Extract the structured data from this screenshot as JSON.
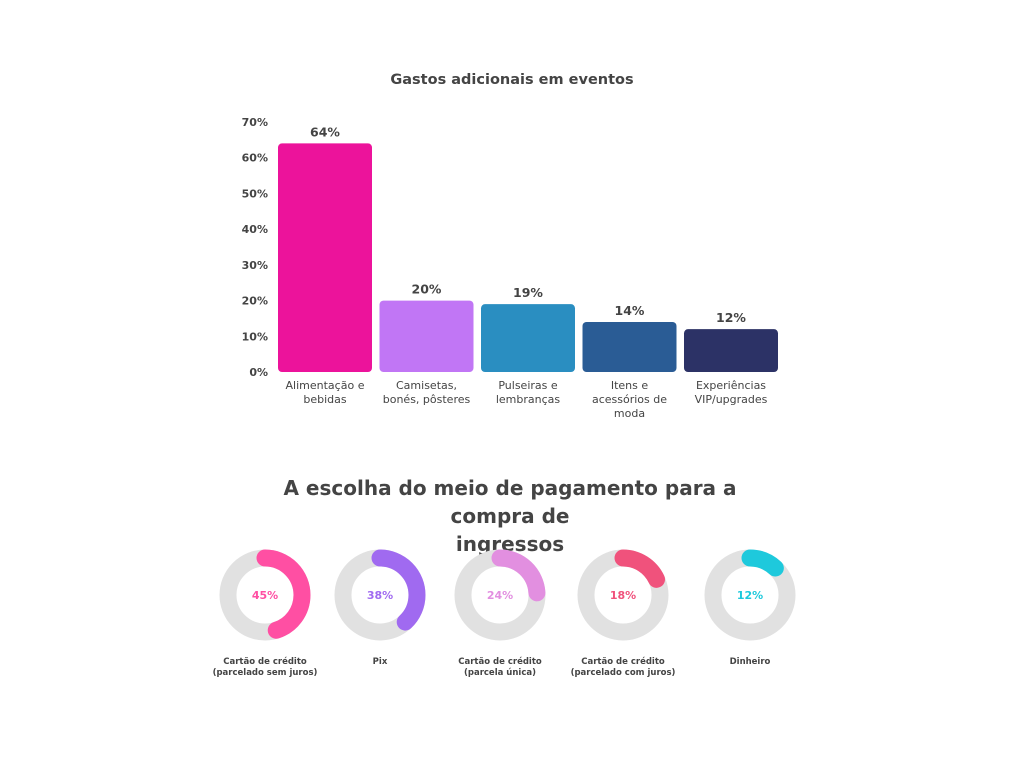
{
  "chart_data": [
    {
      "type": "bar",
      "title": "Gastos adicionais em eventos",
      "xlabel": "",
      "ylabel": "",
      "ylim": [
        0,
        70
      ],
      "yticks": [
        "0%",
        "10%",
        "20%",
        "30%",
        "40%",
        "50%",
        "60%",
        "70%"
      ],
      "categories": [
        "Alimentação e\nbebidas",
        "Camisetas,\nbonés, pôsteres",
        "Pulseiras e\nlembranças",
        "Itens e\nacessórios de\nmoda",
        "Experiências\nVIP/upgrades"
      ],
      "values": [
        64,
        20,
        19,
        14,
        12
      ],
      "value_labels": [
        "64%",
        "20%",
        "19%",
        "14%",
        "12%"
      ],
      "colors": [
        "#EC139B",
        "#C176F5",
        "#2A8EC1",
        "#2A5C95",
        "#2C3266"
      ],
      "grid": false,
      "legend": "none"
    },
    {
      "type": "pie",
      "variant": "donut",
      "title": "A escolha do meio de pagamento para a compra de\ningressos",
      "categories": [
        "Cartão de crédito\n(parcelado sem juros)",
        "Pix",
        "Cartão de crédito\n(parcela única)",
        "Cartão de crédito\n(parcelado com juros)",
        "Dinheiro"
      ],
      "values": [
        45,
        38,
        24,
        18,
        12
      ],
      "value_labels": [
        "45%",
        "38%",
        "24%",
        "18%",
        "12%"
      ],
      "colors": [
        "#FF4FA3",
        "#A06AF0",
        "#E28FE0",
        "#F0527C",
        "#1EC9DC"
      ],
      "track_color": "#E1E1E1"
    }
  ]
}
